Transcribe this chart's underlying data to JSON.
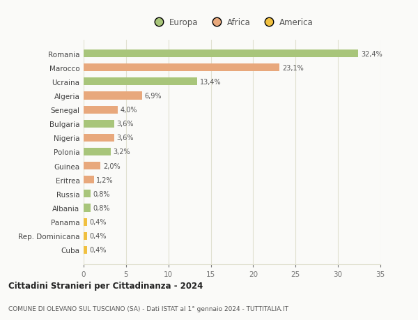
{
  "categories": [
    "Romania",
    "Marocco",
    "Ucraina",
    "Algeria",
    "Senegal",
    "Bulgaria",
    "Nigeria",
    "Polonia",
    "Guinea",
    "Eritrea",
    "Russia",
    "Albania",
    "Panama",
    "Rep. Dominicana",
    "Cuba"
  ],
  "values": [
    32.4,
    23.1,
    13.4,
    6.9,
    4.0,
    3.6,
    3.6,
    3.2,
    2.0,
    1.2,
    0.8,
    0.8,
    0.4,
    0.4,
    0.4
  ],
  "labels": [
    "32,4%",
    "23,1%",
    "13,4%",
    "6,9%",
    "4,0%",
    "3,6%",
    "3,6%",
    "3,2%",
    "2,0%",
    "1,2%",
    "0,8%",
    "0,8%",
    "0,4%",
    "0,4%",
    "0,4%"
  ],
  "colors": [
    "#a8c57a",
    "#e8a87c",
    "#a8c57a",
    "#e8a87c",
    "#e8a87c",
    "#a8c57a",
    "#e8a87c",
    "#a8c57a",
    "#e8a87c",
    "#e8a87c",
    "#a8c57a",
    "#a8c57a",
    "#f0c040",
    "#f0c040",
    "#f0c040"
  ],
  "legend_labels": [
    "Europa",
    "Africa",
    "America"
  ],
  "legend_colors": [
    "#a8c57a",
    "#e8a87c",
    "#f0c040"
  ],
  "title": "Cittadini Stranieri per Cittadinanza - 2024",
  "subtitle": "COMUNE DI OLEVANO SUL TUSCIANO (SA) - Dati ISTAT al 1° gennaio 2024 - TUTTITALIA.IT",
  "xlim": [
    0,
    35
  ],
  "xticks": [
    0,
    5,
    10,
    15,
    20,
    25,
    30,
    35
  ],
  "bg_color": "#fafaf8",
  "grid_color": "#e0e0d0",
  "bar_height": 0.55
}
